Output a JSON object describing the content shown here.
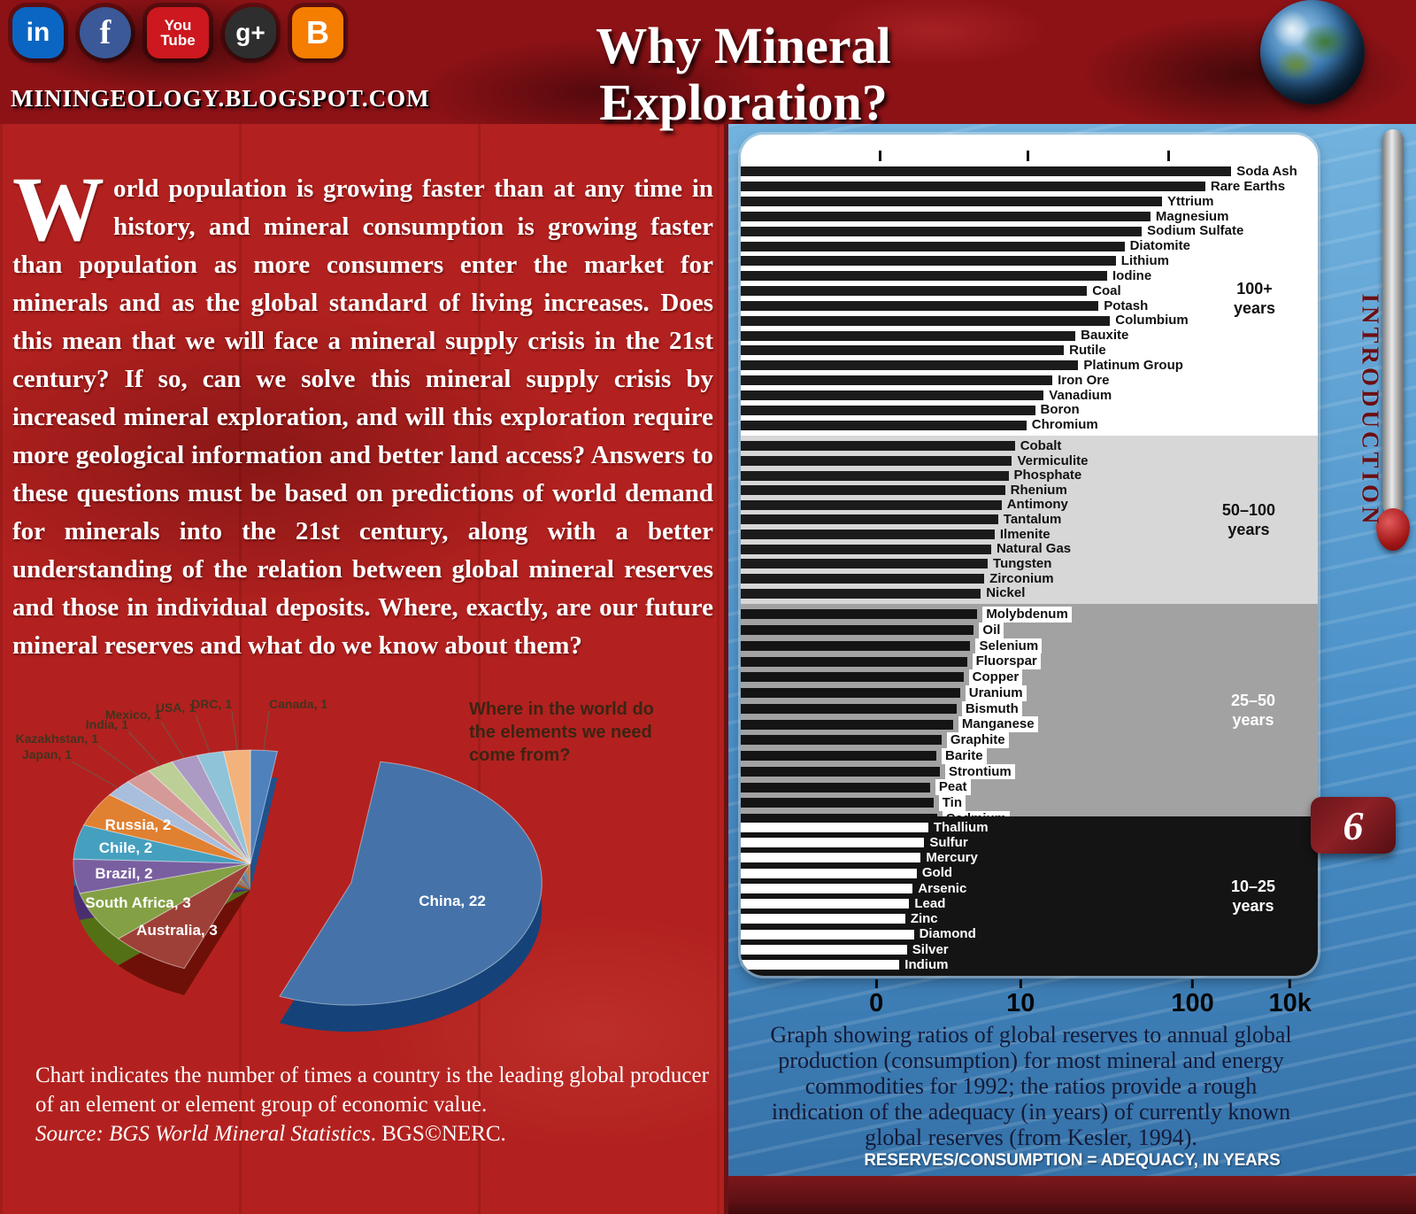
{
  "page": {
    "site": "MININGEOLOGY.BLOGSPOT.COM",
    "title": "Why Mineral Exploration?",
    "page_number": "6",
    "section_label": "INTRODUCTION"
  },
  "social": {
    "linkedin": "in",
    "facebook": "f",
    "youtube_top": "You",
    "youtube_bottom": "Tube",
    "googleplus": "g+",
    "blogger": "B"
  },
  "intro": {
    "dropcap": "W",
    "body": "orld population is growing faster than at any time in history, and mineral consumption is growing faster than population as more consumers enter the market for minerals and as the global standard of living increases. Does this mean that we will face a mineral supply crisis in the 21st century? If so, can we solve this mineral supply crisis by increased mineral exploration, and will this exploration require more geological information and better land access? Answers to these questions must be based on predictions of world demand for minerals into the 21st century, along with a better understanding of the relation between global mineral reserves and those in individual deposits. Where, exactly, are our future mineral reserves and what do we know about them?"
  },
  "pie_section": {
    "question": "Where in the world do the elements we need come from?",
    "caption_line1": "Chart indicates the number of times a country is the leading global producer of an element or element group of economic value.",
    "source_italic": "Source: BGS World Mineral Statistics",
    "source_rest": ". BGS©NERC."
  },
  "bar_section": {
    "caption": "Graph showing ratios of global reserves to annual global production (consumption) for most mineral and energy commodities for 1992; the ratios provide a rough indication of the adequacy (in years) of currently known global reserves (from Kesler, 1994).",
    "footer": "RESERVES/CONSUMPTION = ADEQUACY, IN YEARS"
  },
  "chart_data": [
    {
      "type": "pie",
      "title": "Where in the world do the elements we need come from?",
      "unit": "number of times country is the leading global producer",
      "total": 41,
      "slices": [
        {
          "label": "Canada",
          "value": 1,
          "color": "#4f81bd"
        },
        {
          "label": "China",
          "value": 22,
          "color": "#4573a9",
          "exploded": true
        },
        {
          "label": "Australia",
          "value": 3,
          "color": "#9e4038"
        },
        {
          "label": "South Africa",
          "value": 3,
          "color": "#84a045"
        },
        {
          "label": "Brazil",
          "value": 2,
          "color": "#7a5fa0"
        },
        {
          "label": "Chile",
          "value": 2,
          "color": "#45a0bf"
        },
        {
          "label": "Russia",
          "value": 2,
          "color": "#e08031"
        },
        {
          "label": "Japan",
          "value": 1,
          "color": "#a8bedd"
        },
        {
          "label": "Kazakhstan",
          "value": 1,
          "color": "#d59a98"
        },
        {
          "label": "India",
          "value": 1,
          "color": "#bccf96"
        },
        {
          "label": "Mexico",
          "value": 1,
          "color": "#ab9ac4"
        },
        {
          "label": "USA",
          "value": 1,
          "color": "#8fc3d8"
        },
        {
          "label": "DRC",
          "value": 1,
          "color": "#f3b27c"
        }
      ]
    },
    {
      "type": "bar",
      "orientation": "horizontal",
      "note": "bar lengths are percent of plot width read from the image; axis is logarithmic",
      "x_axis": {
        "scale": "log",
        "tick_labels": [
          "0",
          "10",
          "100",
          "10k"
        ],
        "tick_pos_pct": [
          23.5,
          48.5,
          78.3,
          95.2
        ]
      },
      "top_tick_pos_pct": [
        24,
        49.5,
        74
      ],
      "groups": [
        {
          "label": "100+ years",
          "label_lines": [
            "100+",
            "years"
          ],
          "years_range": "100+",
          "band_bg": "#ffffff",
          "bar_color": "#1b1b1b",
          "text_color": "#111111",
          "period_color": "#111111",
          "label_chip": false,
          "items": [
            {
              "name": "Soda Ash",
              "pct": 85
            },
            {
              "name": "Rare Earths",
              "pct": 80.5
            },
            {
              "name": "Yttrium",
              "pct": 73
            },
            {
              "name": "Magnesium",
              "pct": 71
            },
            {
              "name": "Sodium Sulfate",
              "pct": 69.5
            },
            {
              "name": "Diatomite",
              "pct": 66.5
            },
            {
              "name": "Lithium",
              "pct": 65
            },
            {
              "name": "Iodine",
              "pct": 63.5
            },
            {
              "name": "Coal",
              "pct": 60
            },
            {
              "name": "Potash",
              "pct": 62
            },
            {
              "name": "Columbium",
              "pct": 64
            },
            {
              "name": "Bauxite",
              "pct": 58
            },
            {
              "name": "Rutile",
              "pct": 56
            },
            {
              "name": "Platinum Group",
              "pct": 58.5
            },
            {
              "name": "Iron Ore",
              "pct": 54
            },
            {
              "name": "Vanadium",
              "pct": 52.5
            },
            {
              "name": "Boron",
              "pct": 51
            },
            {
              "name": "Chromium",
              "pct": 49.5
            }
          ]
        },
        {
          "label": "50–100 years",
          "label_lines": [
            "50–100",
            "years"
          ],
          "years_range": "50-100",
          "band_bg": "#d7d7d7",
          "bar_color": "#1b1b1b",
          "text_color": "#111111",
          "period_color": "#111111",
          "label_chip": false,
          "items": [
            {
              "name": "Cobalt",
              "pct": 47.5
            },
            {
              "name": "Vermiculite",
              "pct": 47
            },
            {
              "name": "Phosphate",
              "pct": 46.4
            },
            {
              "name": "Rhenium",
              "pct": 45.8
            },
            {
              "name": "Antimony",
              "pct": 45.2
            },
            {
              "name": "Tantalum",
              "pct": 44.6
            },
            {
              "name": "Ilmenite",
              "pct": 44
            },
            {
              "name": "Natural Gas",
              "pct": 43.4
            },
            {
              "name": "Tungsten",
              "pct": 42.8
            },
            {
              "name": "Zirconium",
              "pct": 42.2
            },
            {
              "name": "Nickel",
              "pct": 41.6
            }
          ]
        },
        {
          "label": "25–50 years",
          "label_lines": [
            "25–50",
            "years"
          ],
          "years_range": "25-50",
          "band_bg": "#a2a2a2",
          "bar_color": "#141414",
          "text_color": "#111111",
          "period_color": "#ffffff",
          "label_chip": true,
          "items": [
            {
              "name": "Molybdenum",
              "pct": 41
            },
            {
              "name": "Oil",
              "pct": 40.4
            },
            {
              "name": "Selenium",
              "pct": 39.8
            },
            {
              "name": "Fluorspar",
              "pct": 39.2
            },
            {
              "name": "Copper",
              "pct": 38.6
            },
            {
              "name": "Uranium",
              "pct": 38
            },
            {
              "name": "Bismuth",
              "pct": 37.4
            },
            {
              "name": "Manganese",
              "pct": 36.8
            },
            {
              "name": "Graphite",
              "pct": 34.8
            },
            {
              "name": "Barite",
              "pct": 33.9
            },
            {
              "name": "Strontium",
              "pct": 34.5
            },
            {
              "name": "Peat",
              "pct": 32.8
            },
            {
              "name": "Tin",
              "pct": 33.4
            },
            {
              "name": "Cadmium",
              "pct": 34
            }
          ]
        },
        {
          "label": "10–25 years",
          "label_lines": [
            "10–25",
            "years"
          ],
          "years_range": "10-25",
          "band_bg": "#141414",
          "bar_color": "#ffffff",
          "text_color": "#ffffff",
          "period_color": "#ffffff",
          "label_chip": false,
          "items": [
            {
              "name": "Thallium",
              "pct": 32.5
            },
            {
              "name": "Sulfur",
              "pct": 31.8
            },
            {
              "name": "Mercury",
              "pct": 31.2
            },
            {
              "name": "Gold",
              "pct": 30.5
            },
            {
              "name": "Arsenic",
              "pct": 29.8
            },
            {
              "name": "Lead",
              "pct": 29.2
            },
            {
              "name": "Zinc",
              "pct": 28.5
            },
            {
              "name": "Diamond",
              "pct": 30
            },
            {
              "name": "Silver",
              "pct": 28.8
            },
            {
              "name": "Indium",
              "pct": 27.5
            }
          ]
        }
      ]
    }
  ]
}
